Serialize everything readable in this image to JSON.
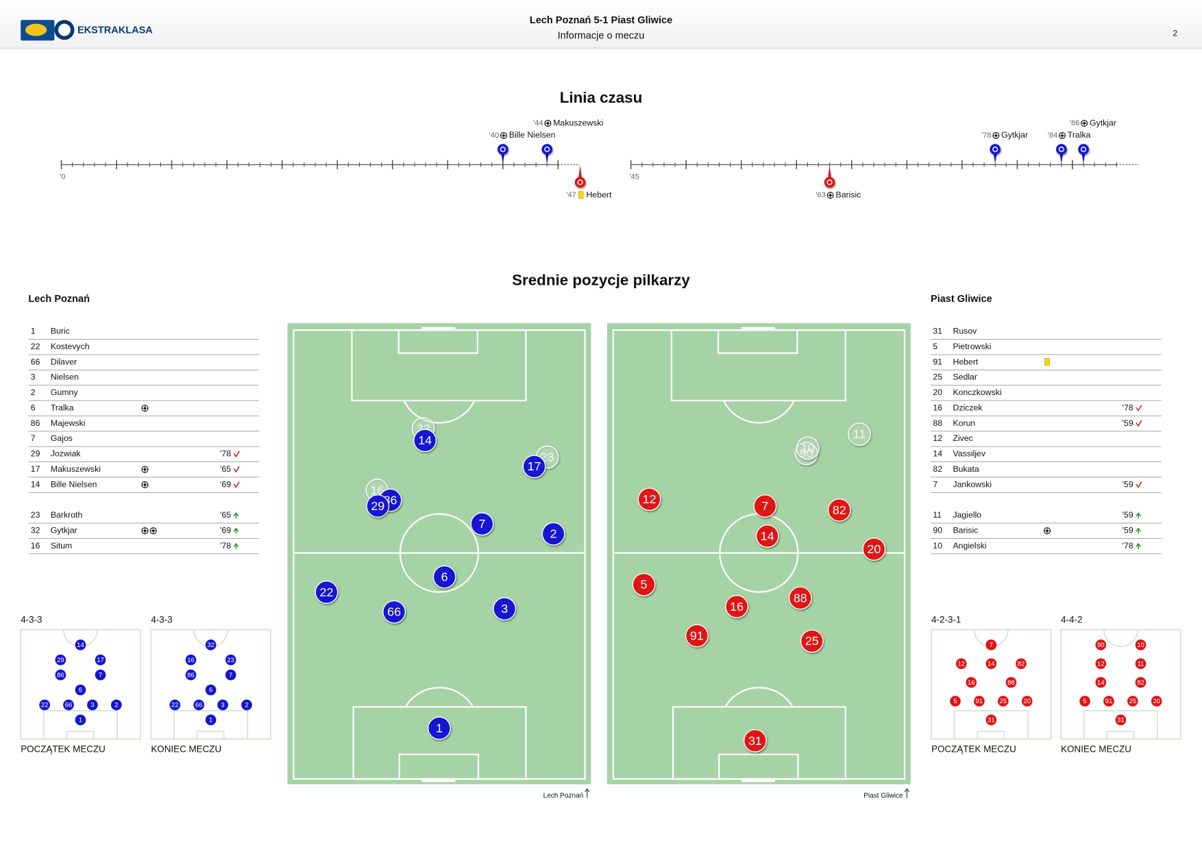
{
  "header": {
    "logo_text": "EKSTRAKLASA",
    "title": "Lech Poznań 5-1 Piast Gliwice",
    "subtitle": "Informacje o meczu",
    "page": "2"
  },
  "timeline": {
    "title": "Linia czasu",
    "halves": [
      {
        "start": {
          "value": 0,
          "label": "'0"
        },
        "home_events": [
          {
            "minute": {
              "value": 40,
              "label": "'40"
            },
            "type": "goal",
            "player": "Bille Nielsen"
          },
          {
            "minute": {
              "value": 44,
              "label": "'44"
            },
            "type": "goal",
            "player": "Makuszewski"
          }
        ],
        "away_events": [
          {
            "minute": {
              "value": 47,
              "label": "'47"
            },
            "type": "yellow_card",
            "player": "Hebert"
          }
        ]
      },
      {
        "start": {
          "value": 45,
          "label": "'45"
        },
        "home_events": [
          {
            "minute": {
              "value": 78,
              "label": "'78"
            },
            "type": "goal",
            "player": "Gytkjar"
          },
          {
            "minute": {
              "value": 84,
              "label": "'84"
            },
            "type": "goal",
            "player": "Tralka"
          },
          {
            "minute": {
              "value": 86,
              "label": "'86"
            },
            "type": "goal",
            "player": "Gytkjar"
          }
        ],
        "away_events": [
          {
            "minute": {
              "value": 63,
              "label": "'63"
            },
            "type": "goal",
            "player": "Barisic"
          }
        ]
      }
    ]
  },
  "positions_title": "Srednie pozycje pilkarzy",
  "teams": [
    {
      "name": "Lech Poznań",
      "color": "#1414d2",
      "starters": [
        {
          "number": 1,
          "name": "Buric",
          "x": 50,
          "y": 88.7
        },
        {
          "number": 22,
          "name": "Kostevych",
          "x": 11.3,
          "y": 58.4
        },
        {
          "number": 66,
          "name": "Dilaver",
          "x": 34.5,
          "y": 62.8
        },
        {
          "number": 3,
          "name": "Nielsen",
          "x": 72.4,
          "y": 62.1
        },
        {
          "number": 2,
          "name": "Gumny",
          "x": 89.2,
          "y": 45.4
        },
        {
          "number": 6,
          "name": "Tralka",
          "goals": 1,
          "x": 51.8,
          "y": 55.0
        },
        {
          "number": 86,
          "name": "Majewski",
          "x": 33.2,
          "y": 37.9
        },
        {
          "number": 7,
          "name": "Gajos",
          "x": 64.7,
          "y": 43.2
        },
        {
          "number": 29,
          "name": "Jozwiak",
          "sub": {
            "value": 78,
            "label": "'78"
          },
          "x": 28.9,
          "y": 39.2
        },
        {
          "number": 17,
          "name": "Makuszewski",
          "goals": 1,
          "sub": {
            "value": 65,
            "label": "'65"
          },
          "x": 82.6,
          "y": 30.4
        },
        {
          "number": 14,
          "name": "Bille Nielsen",
          "goals": 1,
          "sub": {
            "value": 69,
            "label": "'69"
          },
          "x": 45.1,
          "y": 24.6
        }
      ],
      "substitutes": [
        {
          "number": 23,
          "name": "Barkroth",
          "sub": {
            "value": 65,
            "label": "'65"
          },
          "x": 87.1,
          "y": 28.3
        },
        {
          "number": 32,
          "name": "Gytkjar",
          "goals": 2,
          "sub": {
            "value": 69,
            "label": "'69"
          },
          "x": 44.5,
          "y": 22.0
        },
        {
          "number": 16,
          "name": "Situm",
          "sub": {
            "value": 78,
            "label": "'78"
          },
          "x": 28.7,
          "y": 35.7
        }
      ],
      "formations": [
        {
          "name": "4-3-3",
          "caption": "POCZĄTEK MECZU",
          "lines": [
            [
              1
            ],
            [
              22,
              66,
              3,
              2
            ],
            [
              6
            ],
            [
              86,
              7
            ],
            [
              29,
              17
            ],
            [
              14
            ]
          ]
        },
        {
          "name": "4-3-3",
          "caption": "KONIEC MECZU",
          "lines": [
            [
              1
            ],
            [
              22,
              66,
              3,
              2
            ],
            [
              6
            ],
            [
              86,
              7
            ],
            [
              16,
              23
            ],
            [
              32
            ]
          ]
        }
      ]
    },
    {
      "name": "Piast Gliwice",
      "color": "#e01414",
      "starters": [
        {
          "number": 31,
          "name": "Rusov",
          "x": 48.7,
          "y": 91.5
        },
        {
          "number": 5,
          "name": "Pietrowski",
          "x": 10.5,
          "y": 56.7
        },
        {
          "number": 91,
          "name": "Hebert",
          "card": "yellow",
          "x": 28.7,
          "y": 68.1
        },
        {
          "number": 25,
          "name": "Sedlar",
          "x": 68.2,
          "y": 69.3
        },
        {
          "number": 20,
          "name": "Konczkowski",
          "x": 89.5,
          "y": 48.8
        },
        {
          "number": 16,
          "name": "Dziczek",
          "sub": {
            "value": 78,
            "label": "'78"
          },
          "x": 42.4,
          "y": 61.6
        },
        {
          "number": 88,
          "name": "Korun",
          "sub": {
            "value": 59,
            "label": "'59"
          },
          "x": 64.2,
          "y": 59.7
        },
        {
          "number": 12,
          "name": "Zivec",
          "x": 12.4,
          "y": 37.7
        },
        {
          "number": 14,
          "name": "Vassiljev",
          "x": 52.9,
          "y": 45.9
        },
        {
          "number": 82,
          "name": "Bukata",
          "x": 77.6,
          "y": 40.1
        },
        {
          "number": 7,
          "name": "Jankowski",
          "sub": {
            "value": 59,
            "label": "'59"
          },
          "x": 52.1,
          "y": 39.2
        }
      ],
      "substitutes": [
        {
          "number": 11,
          "name": "Jagiello",
          "sub": {
            "value": 59,
            "label": "'59"
          },
          "x": 84.5,
          "y": 23.2
        },
        {
          "number": 90,
          "name": "Barisic",
          "goals": 1,
          "sub": {
            "value": 59,
            "label": "'59"
          },
          "x": 66.3,
          "y": 27.5
        },
        {
          "number": 10,
          "name": "Angielski",
          "sub": {
            "value": 78,
            "label": "'78"
          },
          "x": 66.8,
          "y": 26.3
        }
      ],
      "formations": [
        {
          "name": "4-2-3-1",
          "caption": "POCZĄTEK MECZU",
          "lines": [
            [
              31
            ],
            [
              5,
              91,
              25,
              20
            ],
            [
              16,
              88
            ],
            [
              12,
              14,
              82
            ],
            [
              7
            ]
          ]
        },
        {
          "name": "4-4-2",
          "caption": "KONIEC MECZU",
          "lines": [
            [
              31
            ],
            [
              5,
              91,
              25,
              20
            ],
            [
              14,
              82
            ],
            [
              12,
              11
            ],
            [
              90,
              10
            ]
          ]
        }
      ]
    }
  ]
}
